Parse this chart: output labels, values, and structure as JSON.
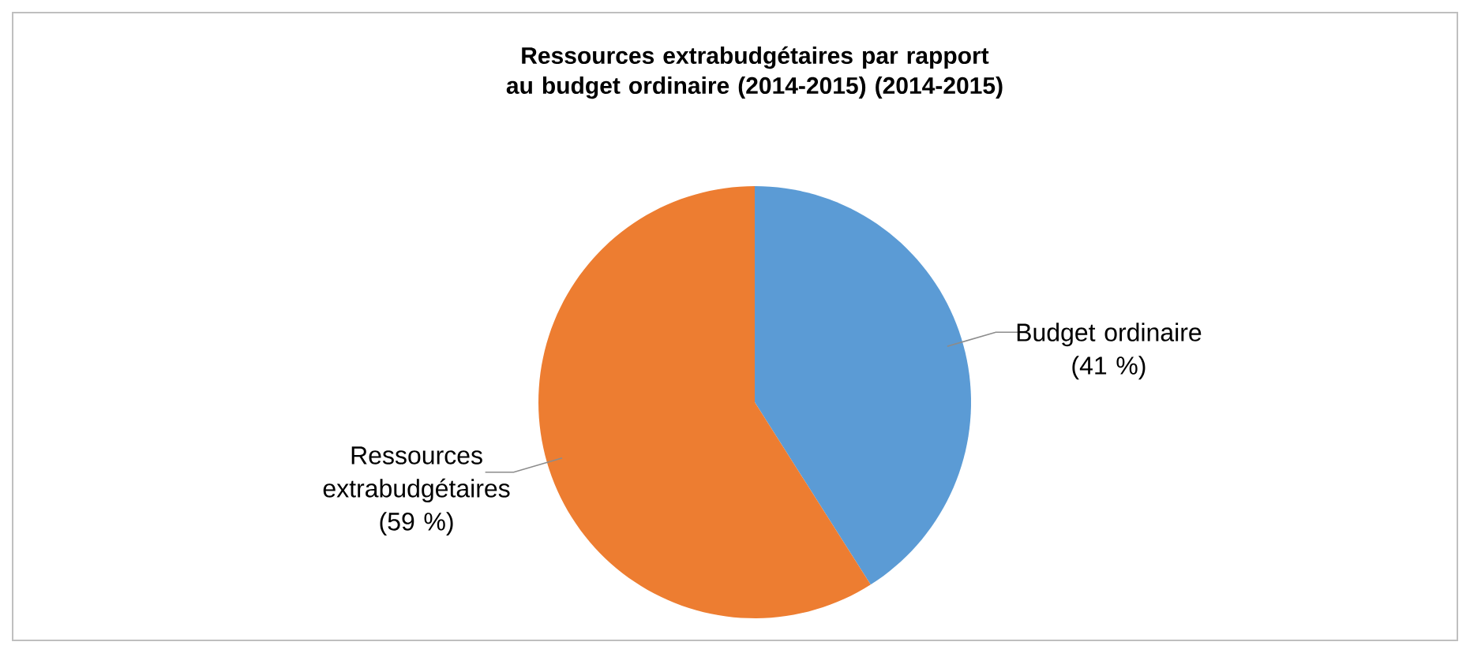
{
  "chart_data": {
    "type": "pie",
    "title": "Ressources extrabudgétaires par rapport au budget ordinaire (2014-2015) (2014-2015)",
    "categories": [
      "Budget ordinaire",
      "Ressources extrabudgétaires"
    ],
    "values": [
      41,
      59
    ],
    "colors": [
      "#5b9bd5",
      "#ed7d31"
    ],
    "value_labels": [
      "(41 %)",
      "(59 %)"
    ]
  }
}
